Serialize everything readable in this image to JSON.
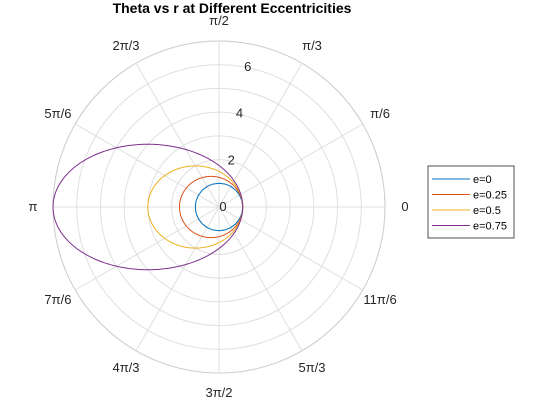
{
  "chart_data": {
    "type": "line",
    "coordinate_system": "polar",
    "title": "Theta vs r at Different Eccentricities",
    "theta_ticks": [
      "0",
      "π/6",
      "π/3",
      "π/2",
      "2π/3",
      "5π/6",
      "π",
      "7π/6",
      "4π/3",
      "3π/2",
      "5π/3",
      "11π/6"
    ],
    "r_ticks": [
      "0",
      "2",
      "4",
      "6"
    ],
    "rlim": [
      0,
      7
    ],
    "grid": true,
    "legend": "right",
    "model": "r = (1 + e) / (1 + e*cos(theta))",
    "series": [
      {
        "name": "e=0",
        "eccentricity": 0,
        "color": "#0072BD"
      },
      {
        "name": "e=0.25",
        "eccentricity": 0.25,
        "color": "#D95319"
      },
      {
        "name": "e=0.5",
        "eccentricity": 0.5,
        "color": "#EDB120"
      },
      {
        "name": "e=0.75",
        "eccentricity": 0.75,
        "color": "#7E2F8E"
      }
    ]
  }
}
